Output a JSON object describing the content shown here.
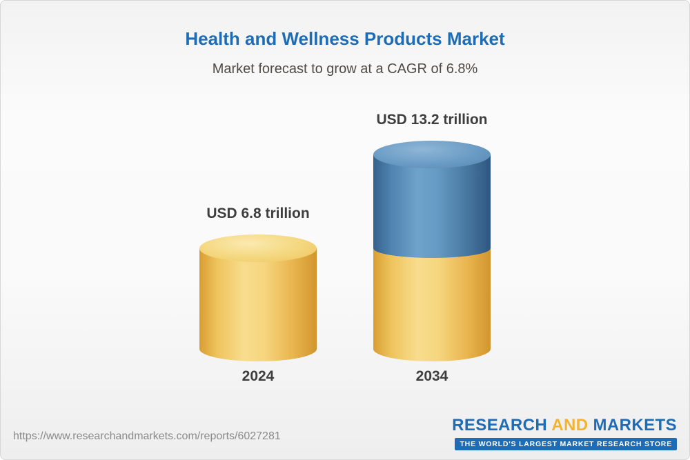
{
  "chart_data": {
    "type": "bar",
    "subtype": "stacked-3d-cylinder",
    "title": "Health and Wellness Products Market",
    "subtitle": "Market forecast to grow at a CAGR of 6.8%",
    "categories": [
      "2024",
      "2034"
    ],
    "unit": "USD trillion",
    "totals": [
      6.8,
      13.2
    ],
    "value_labels": [
      "USD 6.8 trillion",
      "USD 13.2 trillion"
    ],
    "series": [
      {
        "name": "yellow-segment",
        "color": "#F3CF73",
        "values": [
          6.8,
          6.8
        ]
      },
      {
        "name": "blue-segment",
        "color": "#5A8FBB",
        "values": [
          0,
          6.4
        ]
      }
    ],
    "cagr_percent": 6.8,
    "ylim": [
      0,
      14
    ],
    "grid": false,
    "legend": "none"
  },
  "footer": {
    "url": "https://www.researchandmarkets.com/reports/6027281",
    "logo": {
      "research": "RESEARCH",
      "and": "AND",
      "markets": "MARKETS",
      "tagline": "THE WORLD'S LARGEST MARKET RESEARCH STORE"
    }
  },
  "colors": {
    "title-blue": "#1E6CB5",
    "text-dark": "#3E3E3E",
    "yellow-main": "#F3CF73",
    "yellow-dark": "#D89C33",
    "yellow-light": "#FAE296",
    "blue-main": "#5A8FBB",
    "blue-dark": "#2F5A82",
    "blue-light": "#79A8CE",
    "logo-blue": "#1E6CB5",
    "logo-gold": "#F2B430",
    "url-gray": "#8A8A8A"
  }
}
